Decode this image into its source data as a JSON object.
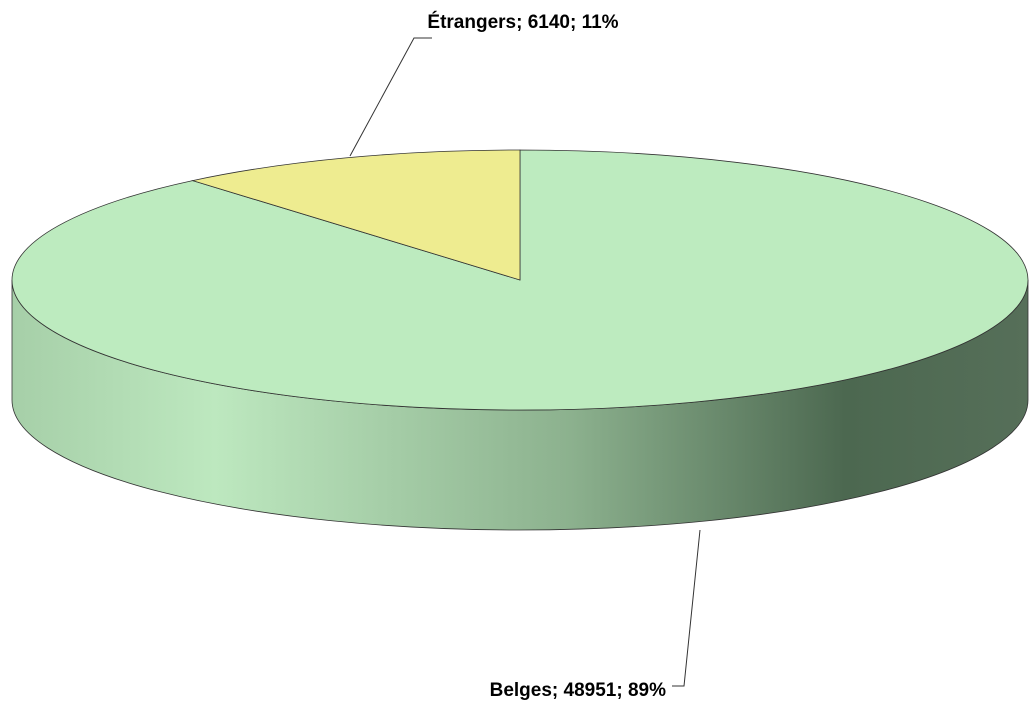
{
  "chart_data": {
    "type": "pie",
    "categories": [
      "Belges",
      "Étrangers"
    ],
    "values": [
      48951,
      6140
    ],
    "value_labels": [
      "Belges; 48951; 89%",
      "Étrangers; 6140; 11%"
    ],
    "colors": [
      "#bdebbf",
      "#eeec90"
    ]
  }
}
